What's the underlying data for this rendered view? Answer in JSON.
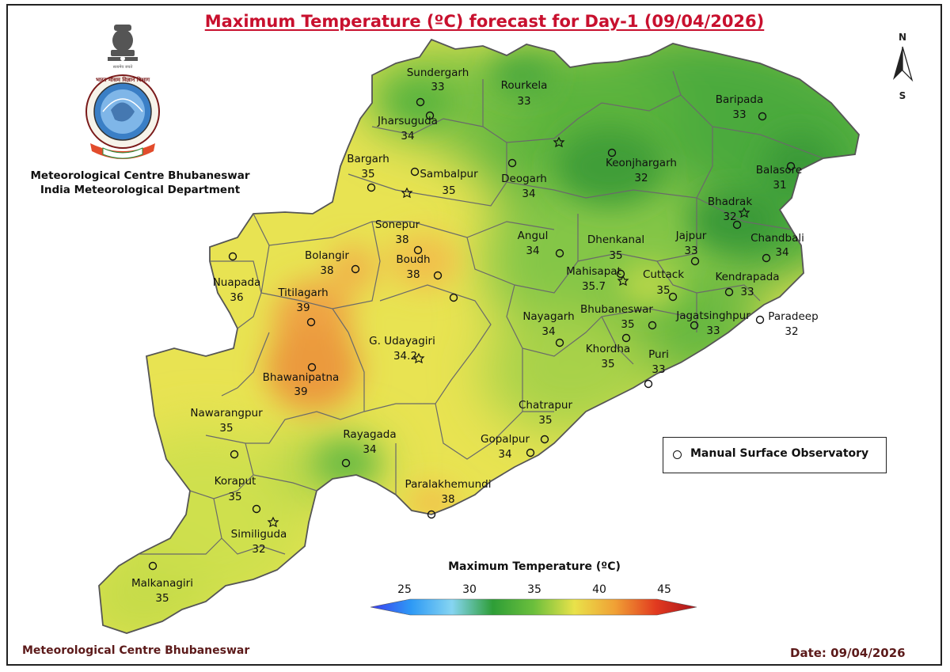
{
  "title": "Maximum Temperature (ºC) forecast for Day-1 (09/04/2026)",
  "organization": {
    "line1": "Meteorological Centre Bhubaneswar",
    "line2": "India Meteorological Department"
  },
  "footer": {
    "left": "Meteorological Centre Bhubaneswar",
    "right": "Date: 09/04/2026"
  },
  "north_arrow": {
    "n": "N",
    "s": "S"
  },
  "legend": {
    "symbol": "circle-marker",
    "label": "Manual Surface Observatory"
  },
  "colorbar": {
    "title": "Maximum Temperature (ºC)",
    "ticks": [
      "25",
      "30",
      "35",
      "40",
      "45"
    ],
    "min": 22.5,
    "max": 47.5,
    "colors": [
      "#3a3cf0",
      "#2e9af5",
      "#86d5f2",
      "#2e9e37",
      "#6bbf3c",
      "#e9e24a",
      "#f0a035",
      "#e23a1f",
      "#a8141c"
    ]
  },
  "stations": [
    {
      "name": "Sundergarh",
      "value": "33"
    },
    {
      "name": "Rourkela",
      "value": "33"
    },
    {
      "name": "Jharsuguda",
      "value": "34"
    },
    {
      "name": "Baripada",
      "value": "33"
    },
    {
      "name": "Keonjhargarh",
      "value": "32"
    },
    {
      "name": "Bargarh",
      "value": "35"
    },
    {
      "name": "Sambalpur",
      "value": "35"
    },
    {
      "name": "Deogarh",
      "value": "34"
    },
    {
      "name": "Balasore",
      "value": "31"
    },
    {
      "name": "Bhadrak",
      "value": "32"
    },
    {
      "name": "Sonepur",
      "value": "38"
    },
    {
      "name": "Angul",
      "value": "34"
    },
    {
      "name": "Dhenkanal",
      "value": "35"
    },
    {
      "name": "Jajpur",
      "value": "33"
    },
    {
      "name": "Chandbali",
      "value": "34"
    },
    {
      "name": "Bolangir",
      "value": "38"
    },
    {
      "name": "Boudh",
      "value": "38"
    },
    {
      "name": "Nuapada",
      "value": "36"
    },
    {
      "name": "Mahisapat",
      "value": "35.7"
    },
    {
      "name": "Cuttack",
      "value": "35"
    },
    {
      "name": "Kendrapada",
      "value": "33"
    },
    {
      "name": "Titilagarh",
      "value": "39"
    },
    {
      "name": "Bhubaneswar",
      "value": "35"
    },
    {
      "name": "Jagatsinghpur",
      "value": "33"
    },
    {
      "name": "Paradeep",
      "value": "32"
    },
    {
      "name": "Nayagarh",
      "value": "34"
    },
    {
      "name": "G. Udayagiri",
      "value": "34.2"
    },
    {
      "name": "Khordha",
      "value": "35"
    },
    {
      "name": "Puri",
      "value": "33"
    },
    {
      "name": "Bhawanipatna",
      "value": "39"
    },
    {
      "name": "Nawarangpur",
      "value": "35"
    },
    {
      "name": "Chatrapur",
      "value": "35"
    },
    {
      "name": "Rayagada",
      "value": "34"
    },
    {
      "name": "Gopalpur",
      "value": "34"
    },
    {
      "name": "Koraput",
      "value": "35"
    },
    {
      "name": "Paralakhemundi",
      "value": "38"
    },
    {
      "name": "Similiguda",
      "value": "32"
    },
    {
      "name": "Malkanagiri",
      "value": "35"
    }
  ]
}
